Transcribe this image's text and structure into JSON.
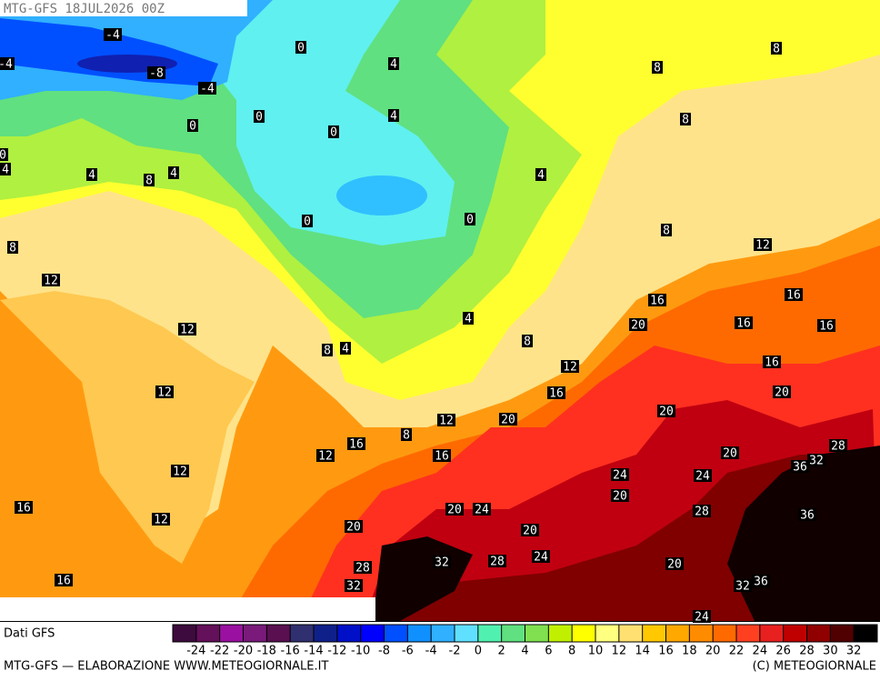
{
  "header": {
    "title": "MTG-GFS 18JUL2026 00Z"
  },
  "map": {
    "contour_labels": [
      -4,
      -4,
      -8,
      -4,
      0,
      4,
      8,
      8,
      0,
      0,
      0,
      4,
      8,
      0,
      4,
      4,
      4,
      8,
      4,
      0,
      0,
      8,
      8,
      12,
      12,
      16,
      16,
      4,
      20,
      16,
      16,
      12,
      8,
      4,
      8,
      12,
      16,
      12,
      16,
      20,
      20,
      20,
      12,
      8,
      16,
      12,
      16,
      20,
      28,
      32,
      36,
      12,
      24,
      24,
      20,
      16,
      20,
      24,
      28,
      36,
      12,
      20,
      20,
      24,
      32,
      28,
      20,
      28,
      16,
      32,
      32,
      36,
      24
    ]
  },
  "legend": {
    "source": "Dati GFS",
    "colors": [
      "#3d0b3d",
      "#64105a",
      "#9a10a0",
      "#7a1a7a",
      "#5a1050",
      "#303070",
      "#10208a",
      "#0010c8",
      "#0000ff",
      "#0050ff",
      "#1090ff",
      "#30b0ff",
      "#60e0ff",
      "#50f0b0",
      "#60e080",
      "#80e050",
      "#c0f000",
      "#ffff00",
      "#ffff80",
      "#ffe070",
      "#ffc800",
      "#ffa800",
      "#ff8c00",
      "#ff6a00",
      "#ff4020",
      "#e82020",
      "#c00000",
      "#900000",
      "#500000",
      "#000000"
    ],
    "ticks": [
      -24,
      -22,
      -20,
      -18,
      -16,
      -14,
      -12,
      -10,
      -8,
      -6,
      -4,
      -2,
      0,
      2,
      4,
      6,
      8,
      10,
      12,
      14,
      16,
      18,
      20,
      22,
      24,
      26,
      28,
      30,
      32
    ]
  },
  "footer": {
    "left": "MTG-GFS — ELABORAZIONE WWW.METEOGIORNALE.IT",
    "right": "(C) METEOGIORNALE"
  }
}
